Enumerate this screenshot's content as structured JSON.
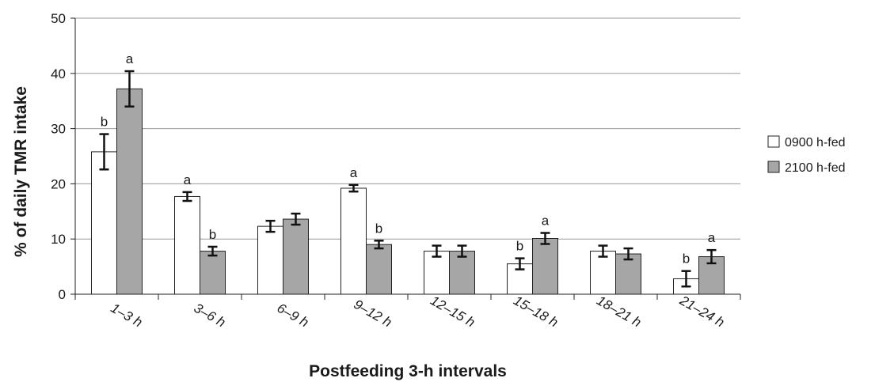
{
  "chart_data": {
    "type": "bar",
    "title": "",
    "xlabel": "Postfeeding 3-h intervals",
    "ylabel": "% of daily TMR intake",
    "ylim": [
      0,
      50
    ],
    "yticks": [
      "0",
      "10",
      "20",
      "30",
      "40",
      "50"
    ],
    "grid": true,
    "legend_position": "right",
    "categories": [
      "1–3 h",
      "3–6 h",
      "6–9 h",
      "9–12 h",
      "12–15 h",
      "15–18 h",
      "18–21 h",
      "21–24 h"
    ],
    "series": [
      {
        "name": "0900 h-fed",
        "color": "#ffffff",
        "values": [
          25.8,
          17.7,
          12.3,
          19.2,
          7.8,
          5.5,
          7.8,
          2.8
        ],
        "errors": [
          3.2,
          0.8,
          1.0,
          0.6,
          1.0,
          1.0,
          1.0,
          1.4
        ],
        "labels": [
          "b",
          "a",
          "",
          "a",
          "",
          "b",
          "",
          "b"
        ]
      },
      {
        "name": "2100 h-fed",
        "color": "#a6a6a6",
        "values": [
          37.2,
          7.8,
          13.6,
          9.0,
          7.8,
          10.1,
          7.3,
          6.8
        ],
        "errors": [
          3.2,
          0.8,
          1.0,
          0.7,
          1.0,
          1.0,
          1.0,
          1.2
        ],
        "labels": [
          "a",
          "b",
          "",
          "b",
          "",
          "a",
          "",
          "a"
        ]
      }
    ]
  }
}
